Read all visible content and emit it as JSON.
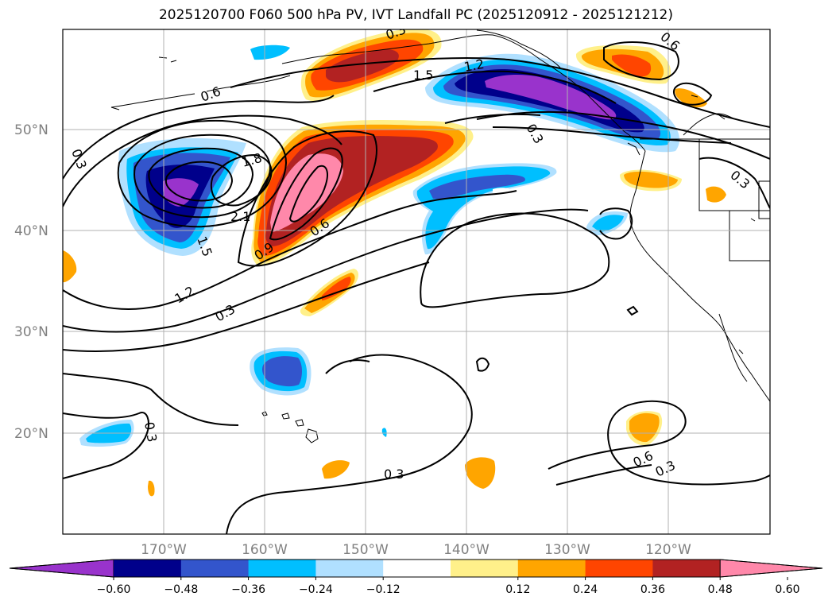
{
  "title": "2025120700 F060 500 hPa PV, IVT Landfall PC (2025120912 - 2025121212)",
  "lat_labels": [
    "50°N",
    "40°N",
    "30°N",
    "20°N"
  ],
  "lon_labels": [
    "170°W",
    "160°W",
    "150°W",
    "140°W",
    "130°W",
    "120°W"
  ],
  "colorbar": {
    "colors": [
      "#9933cc",
      "#00008b",
      "#3355cc",
      "#00bfff",
      "#b0e0ff",
      "#ffffff",
      "#fff08a",
      "#ffa500",
      "#ff4500",
      "#b22222",
      "#ff88aa"
    ],
    "tick_labels": [
      "−0.60",
      "−0.48",
      "−0.36",
      "−0.24",
      "−0.12",
      "0.12",
      "0.24",
      "0.36",
      "0.48",
      "0.60"
    ]
  },
  "contour_labels": [
    "0.3",
    "0.6",
    "1.5",
    "1.2",
    "0.3",
    "0.6",
    "0.3",
    "1.8",
    "2.1",
    "1.5",
    "0.9",
    "0.6",
    "1.2",
    "0.3",
    "0.3",
    "0.3",
    "0.6",
    "0.3",
    "0.3"
  ]
}
